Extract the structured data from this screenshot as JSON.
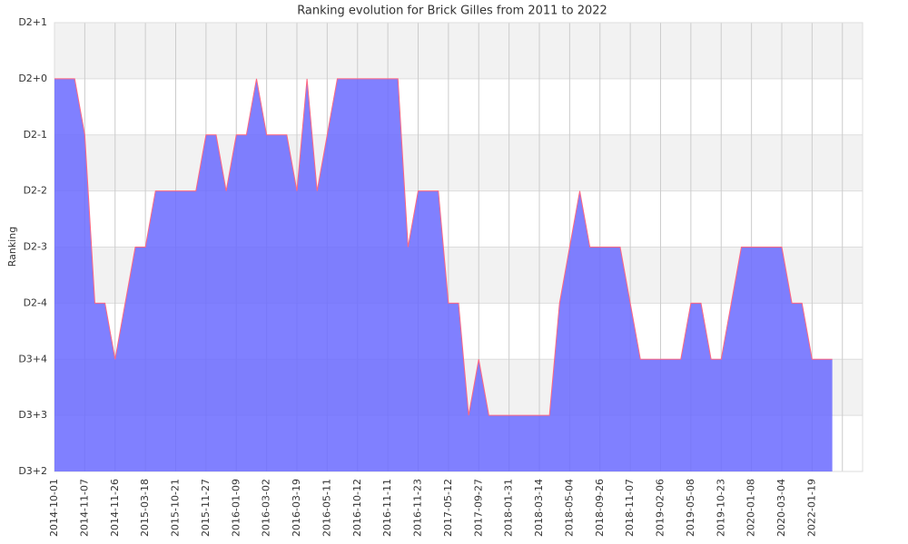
{
  "chart_data": {
    "type": "area",
    "title": "Ranking evolution for Brick Gilles from 2011 to 2022",
    "y_label": "Ranking",
    "color": "#6a6aff",
    "line_color": "#ff6680",
    "categories": [
      "2014-10-01",
      null,
      null,
      "2014-11-07",
      null,
      null,
      "2014-11-26",
      null,
      null,
      "2015-03-18",
      null,
      null,
      "2015-10-21",
      null,
      null,
      "2015-11-27",
      null,
      null,
      "2016-01-09",
      null,
      null,
      "2016-03-02",
      null,
      null,
      "2016-03-19",
      null,
      null,
      "2016-05-11",
      null,
      null,
      "2016-10-12",
      null,
      null,
      "2016-11-11",
      null,
      null,
      "2016-11-23",
      null,
      null,
      "2017-05-12",
      null,
      null,
      "2017-09-27",
      null,
      null,
      "2018-01-31",
      null,
      null,
      "2018-03-14",
      null,
      null,
      "2018-05-04",
      null,
      null,
      "2018-09-26",
      null,
      null,
      "2018-11-07",
      null,
      null,
      "2019-02-06",
      null,
      null,
      "2019-05-08",
      null,
      null,
      "2019-10-23",
      null,
      null,
      "2020-01-08",
      null,
      null,
      "2020-03-04",
      null,
      null,
      "2022-01-19",
      null,
      null,
      null
    ],
    "values": [
      7,
      7,
      7,
      6,
      3,
      3,
      2,
      3,
      4,
      4,
      5,
      5,
      5,
      5,
      5,
      6,
      6,
      5,
      6,
      6,
      7,
      6,
      6,
      6,
      5,
      7,
      5,
      6,
      7,
      7,
      7,
      7,
      7,
      7,
      7,
      4,
      5,
      5,
      5,
      3,
      3,
      1,
      2,
      1,
      1,
      1,
      1,
      1,
      1,
      1,
      3,
      4,
      5,
      4,
      4,
      4,
      4,
      3,
      2,
      2,
      2,
      2,
      2,
      3,
      3,
      2,
      2,
      3,
      4,
      4,
      4,
      4,
      4,
      3,
      3,
      2,
      2,
      2,
      null
    ],
    "ylim": [
      0,
      8
    ],
    "yticks": [
      {
        "value": 0,
        "label": "D3+2"
      },
      {
        "value": 1,
        "label": "D3+3"
      },
      {
        "value": 2,
        "label": "D3+4"
      },
      {
        "value": 3,
        "label": "D2-4"
      },
      {
        "value": 4,
        "label": "D2-3"
      },
      {
        "value": 5,
        "label": "D2-2"
      },
      {
        "value": 6,
        "label": "D2-1"
      },
      {
        "value": 7,
        "label": "D2+0"
      },
      {
        "value": 8,
        "label": "D2+1"
      }
    ],
    "grid": true
  }
}
